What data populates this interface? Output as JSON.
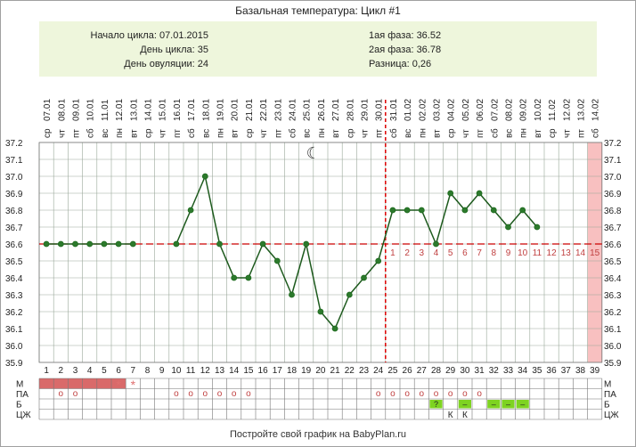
{
  "title": "Базальная температура: Цикл #1",
  "summary": {
    "cycle_start": "Начало цикла: 07.01.2015",
    "cycle_day": "День цикла: 35",
    "ovulation_day": "День овуляции: 24",
    "phase1": "1ая фаза: 36.52",
    "phase2": "2ая фаза: 36.78",
    "difference": "Разница: 0,26"
  },
  "footer": "Постройте свой график на BabyPlan.ru",
  "colors": {
    "line": "#1d5a1d",
    "point": "#1e6a1e",
    "point_fill": "#2c7a2c",
    "coverline": "#cc0000",
    "ovulation_line": "#dd0000",
    "grid": "#9aa89a",
    "menstruation": "#d96a6a",
    "marker_bg": "#7ed321",
    "highlight_col": "#f8c0c0",
    "summary_bg": "#eef6dc",
    "o_marker": "#c04040"
  },
  "chart_data": {
    "type": "line",
    "title": "Базальная температура: Цикл #1",
    "days": [
      1,
      2,
      3,
      4,
      5,
      6,
      7,
      8,
      9,
      10,
      11,
      12,
      13,
      14,
      15,
      16,
      17,
      18,
      19,
      20,
      21,
      22,
      23,
      24,
      25,
      26,
      27,
      28,
      29,
      30,
      31,
      32,
      33,
      34,
      35,
      36,
      37,
      38,
      39
    ],
    "dates": [
      "07.01",
      "08.01",
      "09.01",
      "10.01",
      "11.01",
      "12.01",
      "13.01",
      "14.01",
      "15.01",
      "16.01",
      "17.01",
      "18.01",
      "19.01",
      "20.01",
      "21.01",
      "22.01",
      "23.01",
      "24.01",
      "25.01",
      "26.01",
      "27.01",
      "28.01",
      "29.01",
      "30.01",
      "31.01",
      "01.02",
      "02.02",
      "03.02",
      "04.02",
      "05.02",
      "06.02",
      "07.02",
      "08.02",
      "09.02",
      "10.02",
      "11.02",
      "12.02",
      "13.02",
      "14.02"
    ],
    "weekdays": [
      "ср",
      "чт",
      "пт",
      "сб",
      "вс",
      "пн",
      "вт",
      "ср",
      "чт",
      "пт",
      "сб",
      "вс",
      "пн",
      "вт",
      "ср",
      "чт",
      "пт",
      "сб",
      "вс",
      "пн",
      "вт",
      "ср",
      "чт",
      "пт",
      "сб",
      "вс",
      "пн",
      "вт",
      "ср",
      "чт",
      "пт",
      "сб",
      "вс",
      "пн",
      "вт",
      "ср",
      "чт",
      "пт",
      "сб"
    ],
    "temperatures": [
      36.6,
      36.6,
      36.6,
      36.6,
      36.6,
      36.6,
      36.6,
      null,
      null,
      36.6,
      36.8,
      37.0,
      36.6,
      36.4,
      36.4,
      36.6,
      36.5,
      36.3,
      36.6,
      36.2,
      36.1,
      36.3,
      36.4,
      36.5,
      36.8,
      36.8,
      36.8,
      36.6,
      36.9,
      36.8,
      36.9,
      36.8,
      36.7,
      36.8,
      36.7,
      null,
      null,
      null,
      null
    ],
    "ylim": [
      35.9,
      37.2
    ],
    "yticks": [
      "35.9",
      "36.0",
      "36.1",
      "36.2",
      "36.3",
      "36.4",
      "36.5",
      "36.6",
      "36.7",
      "36.8",
      "36.9",
      "37.0",
      "37.1",
      "37.2"
    ],
    "coverline": 36.6,
    "ovulation_day": 24,
    "phase2_day_labels": [
      "1",
      "2",
      "3",
      "4",
      "5",
      "6",
      "7",
      "8",
      "9",
      "10",
      "11",
      "12",
      "13",
      "14",
      "15"
    ],
    "highlight_day": 39,
    "moon_day": 19,
    "moon_glyph": "☾",
    "rows": [
      {
        "label": "М",
        "menstruation_days": [
          1,
          2,
          3,
          4,
          5,
          6
        ],
        "star_days": [
          6,
          7
        ],
        "star_glyph": "*"
      },
      {
        "label": "ПА",
        "o_days": [
          2,
          3,
          10,
          11,
          12,
          13,
          14,
          15,
          24,
          25,
          26,
          27,
          28,
          29,
          30,
          31
        ],
        "o_glyph": "o"
      },
      {
        "label": "Б",
        "marker_days": [
          28,
          30,
          32,
          33,
          34
        ],
        "marker_texts": [
          "?",
          "–",
          "–",
          "–",
          "–"
        ]
      },
      {
        "label": "ЦЖ",
        "text_days": [
          29,
          30
        ],
        "text_values": [
          "К",
          "К"
        ]
      }
    ]
  }
}
